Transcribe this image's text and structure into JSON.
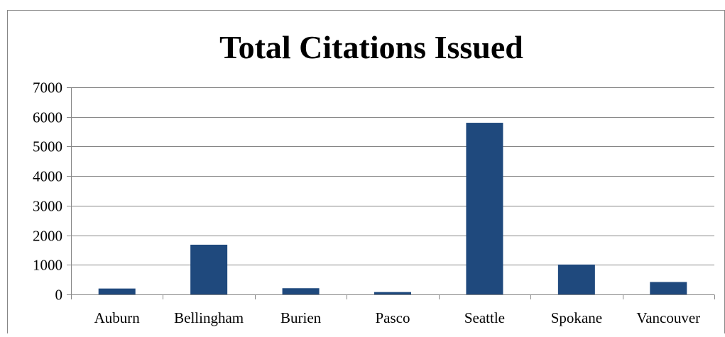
{
  "chart_data": {
    "type": "bar",
    "title": "Total Citations Issued",
    "xlabel": "",
    "ylabel": "",
    "categories": [
      "Auburn",
      "Bellingham",
      "Burien",
      "Pasco",
      "Seattle",
      "Spokane",
      "Vancouver"
    ],
    "values": [
      200,
      1680,
      210,
      80,
      5800,
      1010,
      420
    ],
    "ylim": [
      0,
      7000
    ],
    "yticks": [
      "0",
      "1000",
      "2000",
      "3000",
      "4000",
      "5000",
      "6000",
      "7000"
    ],
    "grid": true,
    "legend": "none",
    "colors": {
      "bar": "#1f497d",
      "grid": "#868686",
      "axis": "#868686",
      "text": "#000000",
      "border": "#868686"
    }
  }
}
